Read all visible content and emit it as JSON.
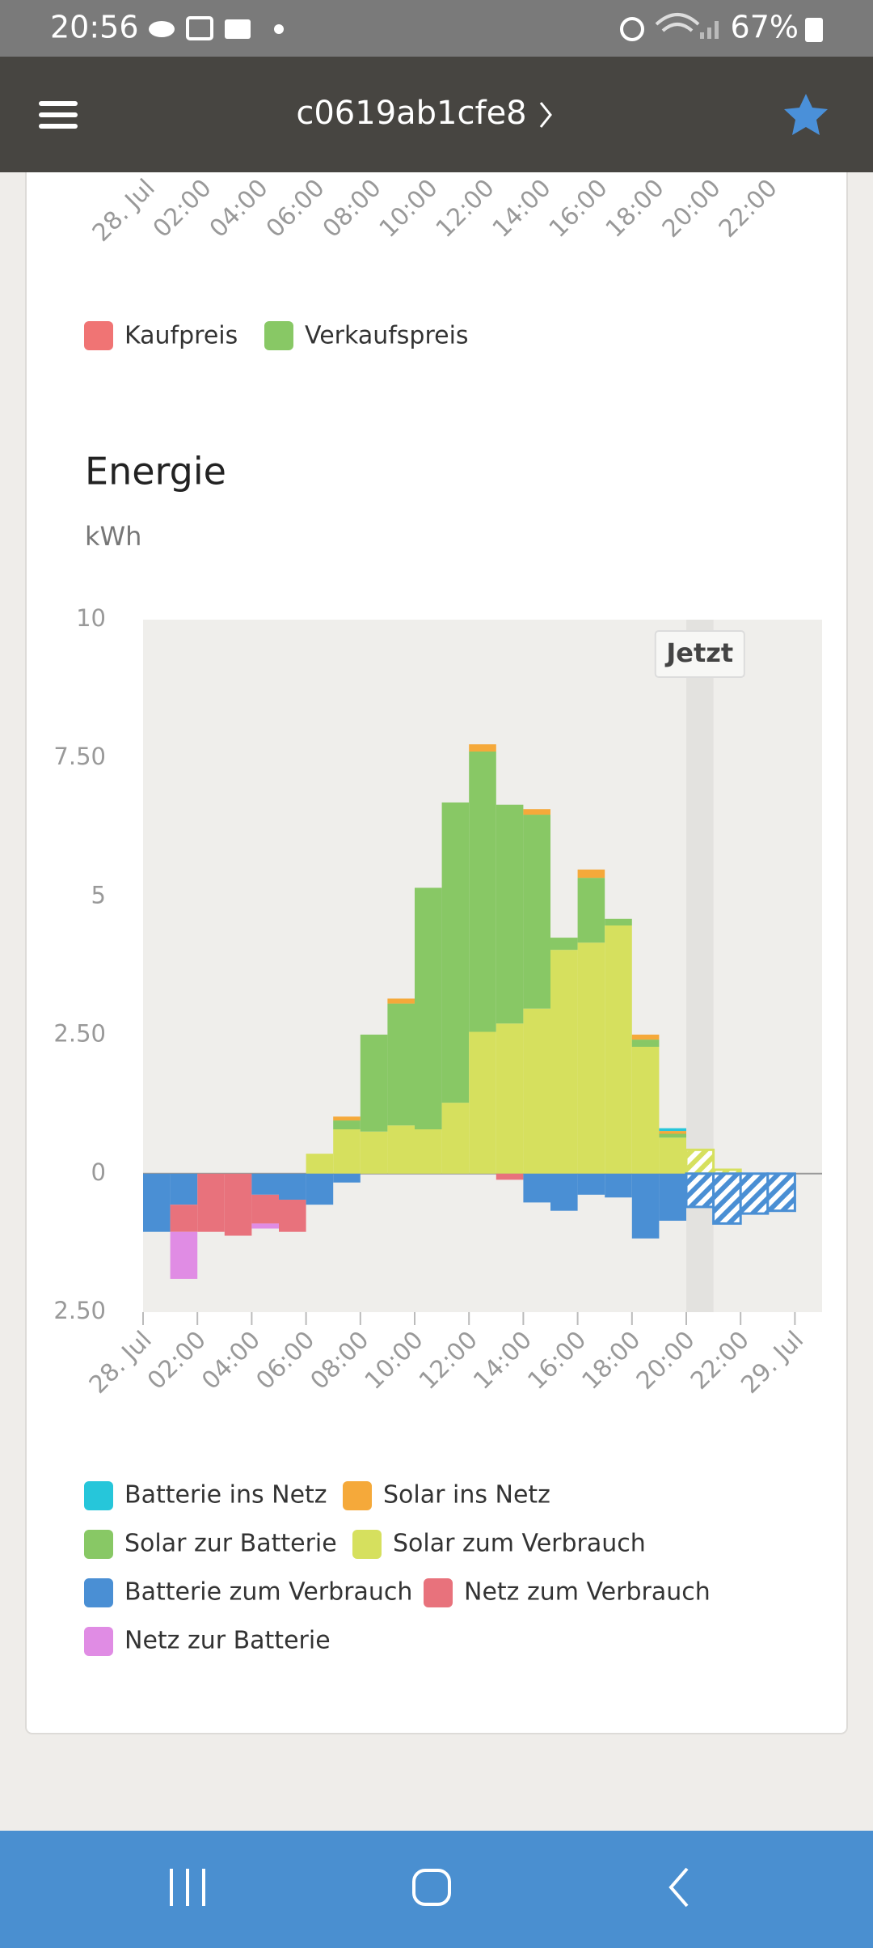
{
  "status_bar": {
    "time": "20:56",
    "battery": "67%"
  },
  "app_bar": {
    "title": "c0619ab1cfe8"
  },
  "price_chart": {
    "x_tick_labels": [
      "28. Jul",
      "02:00",
      "04:00",
      "06:00",
      "08:00",
      "10:00",
      "12:00",
      "14:00",
      "16:00",
      "18:00",
      "20:00",
      "22:00"
    ],
    "legend": [
      {
        "name": "Kaufpreis",
        "color": "#f07474"
      },
      {
        "name": "Verkaufspreis",
        "color": "#88c865"
      }
    ]
  },
  "chart_data": {
    "type": "bar",
    "stacked": true,
    "title": "Energie",
    "subtitle": "kWh",
    "x": [
      0,
      1,
      2,
      3,
      4,
      5,
      6,
      7,
      8,
      9,
      10,
      11,
      12,
      13,
      14,
      15,
      16,
      17,
      18,
      19,
      20,
      21,
      22,
      23
    ],
    "xlim": [
      0,
      25
    ],
    "xticks": [
      {
        "value": 0,
        "label": "28. Jul"
      },
      {
        "value": 2,
        "label": "02:00"
      },
      {
        "value": 4,
        "label": "04:00"
      },
      {
        "value": 6,
        "label": "06:00"
      },
      {
        "value": 8,
        "label": "08:00"
      },
      {
        "value": 10,
        "label": "10:00"
      },
      {
        "value": 12,
        "label": "12:00"
      },
      {
        "value": 14,
        "label": "14:00"
      },
      {
        "value": 16,
        "label": "16:00"
      },
      {
        "value": 18,
        "label": "18:00"
      },
      {
        "value": 20,
        "label": "20:00"
      },
      {
        "value": 22,
        "label": "22:00"
      },
      {
        "value": 24,
        "label": "29. Jul"
      }
    ],
    "ylim": [
      -2.5,
      10
    ],
    "yticks": [
      {
        "value": -2.5,
        "label": "2.50"
      },
      0,
      {
        "value": 2.5,
        "label": "2.50"
      },
      5,
      {
        "value": 7.5,
        "label": "7.50"
      },
      10
    ],
    "grid": false,
    "annotation": {
      "text": "Jetzt",
      "x": 20
    },
    "series": [
      {
        "name": "Batterie ins Netz",
        "color": "#26c6da",
        "values": [
          0,
          0,
          0,
          0,
          0,
          0,
          0,
          0,
          0,
          0,
          0,
          0,
          0,
          0,
          0,
          0,
          0,
          0,
          0,
          0.05,
          0,
          0,
          0,
          0
        ]
      },
      {
        "name": "Solar ins Netz",
        "color": "#f5a93a",
        "values": [
          0,
          0,
          0,
          0,
          0,
          0,
          0,
          0.07,
          0,
          0.09,
          0,
          0,
          0.13,
          0,
          0.1,
          0,
          0.15,
          0,
          0.09,
          0.05,
          0,
          0,
          0,
          0
        ]
      },
      {
        "name": "Solar zur Batterie",
        "color": "#88c865",
        "values": [
          0,
          0,
          0,
          0,
          0,
          0,
          0,
          0.16,
          1.75,
          2.2,
          4.36,
          5.42,
          5.06,
          3.95,
          3.5,
          0.22,
          1.17,
          0.12,
          0.13,
          0.07,
          0,
          0,
          0,
          0
        ]
      },
      {
        "name": "Solar zum Verbrauch",
        "color": "#d6e05e",
        "values": [
          0,
          0,
          0,
          0,
          0,
          0,
          0.36,
          0.8,
          0.76,
          0.87,
          0.8,
          1.28,
          2.56,
          2.71,
          2.98,
          4.04,
          4.17,
          4.48,
          2.29,
          0.65,
          0.43,
          0.07,
          0,
          0
        ]
      },
      {
        "name": "Batterie zum Verbrauch",
        "color": "#4a8fd4",
        "values": [
          -1.05,
          -0.56,
          0,
          0,
          -0.38,
          -0.47,
          -0.56,
          -0.16,
          0,
          0,
          0,
          0,
          0,
          0,
          -0.52,
          -0.67,
          -0.38,
          -0.43,
          -1.17,
          -0.85,
          -0.6,
          -0.9,
          -0.72,
          -0.67
        ]
      },
      {
        "name": "Netz zum Verbrauch",
        "color": "#e8727c",
        "values": [
          0,
          -0.49,
          -1.05,
          -1.12,
          -0.52,
          -0.58,
          0,
          0,
          0,
          0,
          0,
          0,
          0,
          -0.11,
          0,
          0,
          0,
          0,
          0,
          0,
          0,
          0,
          0,
          0
        ]
      },
      {
        "name": "Netz zur Batterie",
        "color": "#e08ce4",
        "values": [
          0,
          -0.85,
          0,
          0,
          -0.09,
          0,
          0,
          0,
          0,
          0,
          0,
          0,
          0,
          0,
          0,
          0,
          0,
          0,
          0,
          0,
          0,
          0,
          0,
          0
        ]
      }
    ]
  }
}
